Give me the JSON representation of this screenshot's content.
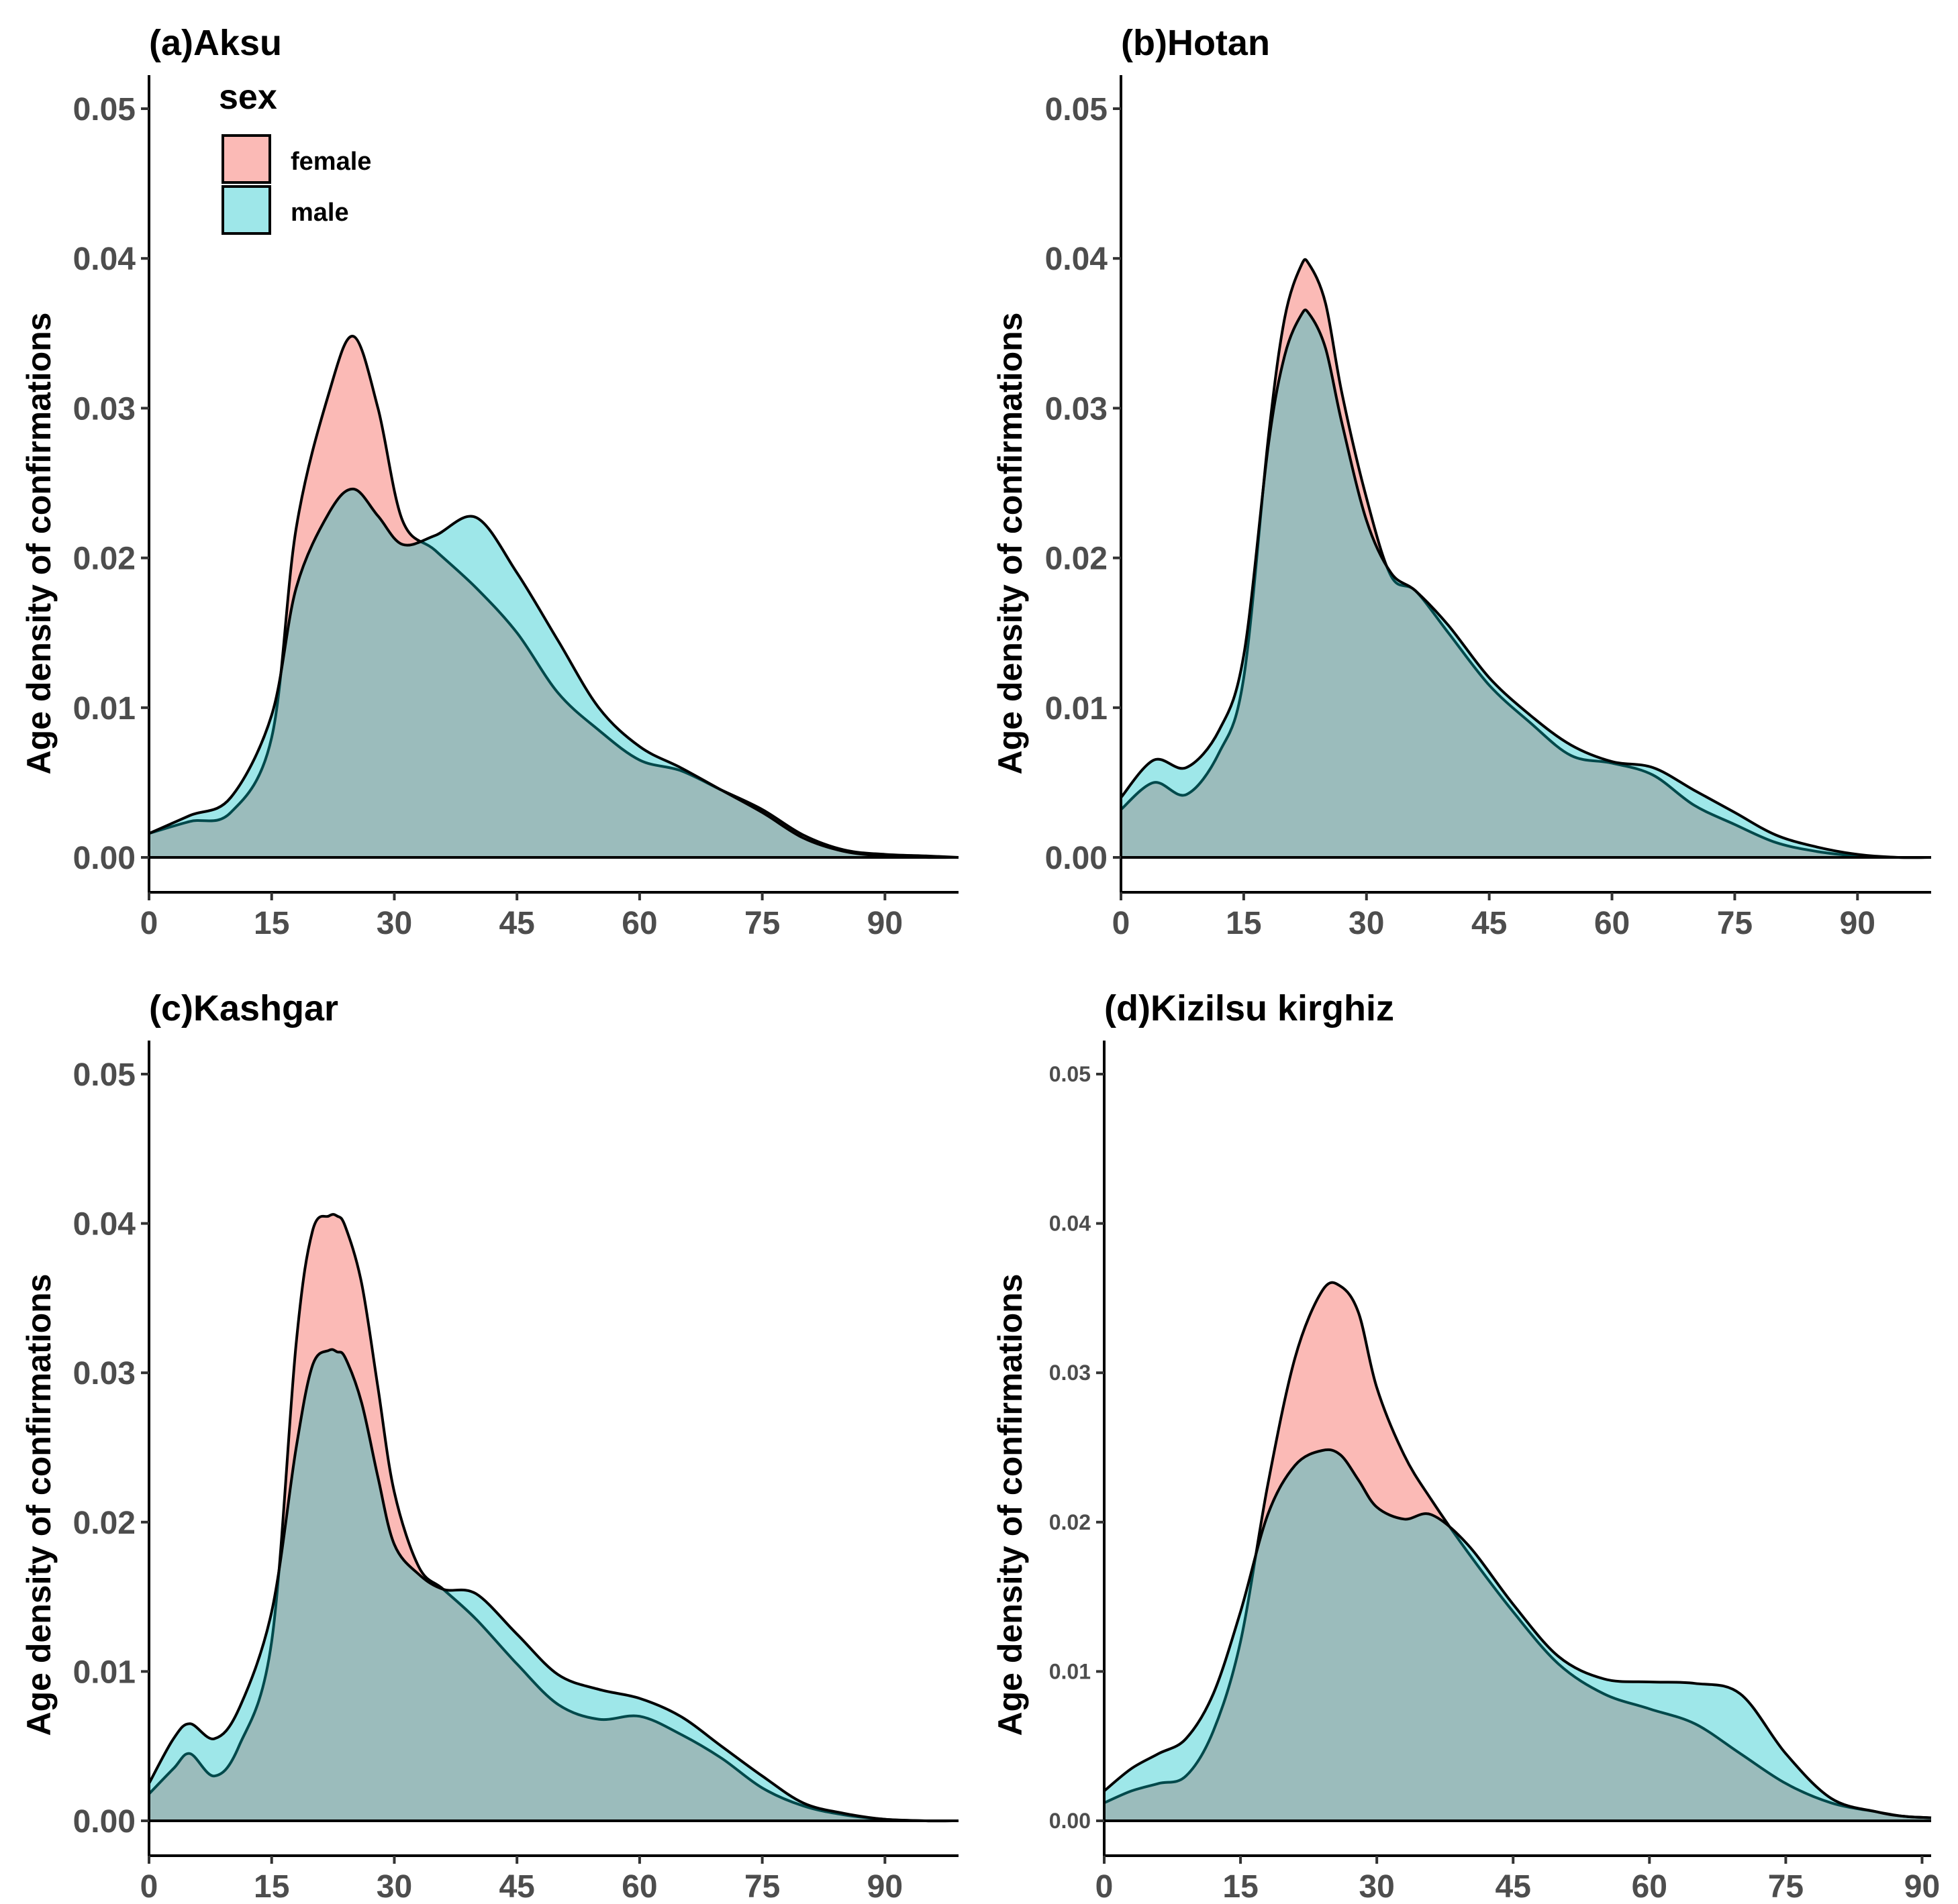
{
  "chart_data": [
    {
      "type": "area",
      "title": "(a)Aksu",
      "xlabel": "",
      "ylabel": "Age density of confirmations",
      "xlim": [
        0,
        99
      ],
      "ylim": [
        0,
        0.05
      ],
      "xticks": [
        "0",
        "15",
        "30",
        "45",
        "60",
        "75",
        "90"
      ],
      "yticks": [
        "0.00",
        "0.01",
        "0.02",
        "0.03",
        "0.04",
        "0.05"
      ],
      "series": [
        {
          "name": "female",
          "x": [
            0,
            5,
            10,
            15,
            18,
            22,
            25,
            28,
            31,
            35,
            40,
            45,
            50,
            55,
            60,
            65,
            70,
            75,
            80,
            85,
            90,
            95,
            99
          ],
          "y": [
            0.0016,
            0.0024,
            0.003,
            0.008,
            0.022,
            0.031,
            0.0348,
            0.03,
            0.0225,
            0.0205,
            0.018,
            0.015,
            0.011,
            0.0085,
            0.0065,
            0.0058,
            0.0045,
            0.0032,
            0.0015,
            0.0005,
            0.0002,
            0.0001,
            0.0
          ]
        },
        {
          "name": "male",
          "x": [
            0,
            5,
            10,
            15,
            18,
            22,
            25,
            28,
            31,
            35,
            40,
            45,
            50,
            55,
            60,
            65,
            70,
            75,
            80,
            85,
            90,
            95,
            99
          ],
          "y": [
            0.0016,
            0.0028,
            0.004,
            0.0095,
            0.018,
            0.023,
            0.0246,
            0.0228,
            0.0209,
            0.0215,
            0.0227,
            0.019,
            0.0145,
            0.01,
            0.0074,
            0.006,
            0.0045,
            0.003,
            0.0013,
            0.0004,
            0.0001,
            0.0,
            0.0
          ]
        }
      ]
    },
    {
      "type": "area",
      "title": "(b)Hotan",
      "xlabel": "",
      "ylabel": "Age density of confirmations",
      "xlim": [
        0,
        99
      ],
      "ylim": [
        0,
        0.05
      ],
      "xticks": [
        "0",
        "15",
        "30",
        "45",
        "60",
        "75",
        "90"
      ],
      "yticks": [
        "0.00",
        "0.01",
        "0.02",
        "0.03",
        "0.04",
        "0.05"
      ],
      "series": [
        {
          "name": "female",
          "x": [
            0,
            4,
            8,
            12,
            15,
            18,
            20,
            22,
            23,
            25,
            27,
            30,
            33,
            36,
            40,
            45,
            50,
            55,
            60,
            65,
            70,
            75,
            80,
            85,
            90,
            95,
            99
          ],
          "y": [
            0.0032,
            0.005,
            0.0042,
            0.007,
            0.012,
            0.028,
            0.036,
            0.0395,
            0.0396,
            0.037,
            0.031,
            0.024,
            0.0188,
            0.0178,
            0.015,
            0.0115,
            0.009,
            0.0068,
            0.0063,
            0.0055,
            0.0035,
            0.0022,
            0.001,
            0.0004,
            0.0001,
            0.0,
            0.0
          ]
        },
        {
          "name": "male",
          "x": [
            0,
            4,
            8,
            12,
            15,
            18,
            20,
            22,
            23,
            25,
            27,
            30,
            33,
            36,
            40,
            45,
            50,
            55,
            60,
            65,
            70,
            75,
            80,
            85,
            90,
            95,
            99
          ],
          "y": [
            0.004,
            0.0065,
            0.006,
            0.0085,
            0.0135,
            0.0275,
            0.0335,
            0.0362,
            0.0363,
            0.034,
            0.029,
            0.0225,
            0.019,
            0.0178,
            0.0155,
            0.012,
            0.0095,
            0.0075,
            0.0064,
            0.006,
            0.0045,
            0.003,
            0.0015,
            0.0007,
            0.0002,
            0.0,
            0.0
          ]
        }
      ]
    },
    {
      "type": "area",
      "title": "(c)Kashgar",
      "xlabel": "",
      "ylabel": "Age density of confirmations",
      "xlim": [
        0,
        99
      ],
      "ylim": [
        0,
        0.05
      ],
      "xticks": [
        "0",
        "15",
        "30",
        "45",
        "60",
        "75",
        "90"
      ],
      "yticks": [
        "0.00",
        "0.01",
        "0.02",
        "0.03",
        "0.04",
        "0.05"
      ],
      "series": [
        {
          "name": "female",
          "x": [
            0,
            3,
            5,
            8,
            11,
            15,
            18,
            20,
            22,
            23,
            24,
            26,
            28,
            30,
            33,
            36,
            40,
            45,
            50,
            55,
            60,
            65,
            70,
            75,
            80,
            85,
            90,
            95,
            99
          ],
          "y": [
            0.0018,
            0.0035,
            0.0045,
            0.003,
            0.005,
            0.012,
            0.032,
            0.0395,
            0.0405,
            0.0405,
            0.0398,
            0.036,
            0.029,
            0.022,
            0.017,
            0.0155,
            0.0135,
            0.0105,
            0.0078,
            0.0068,
            0.007,
            0.0058,
            0.0042,
            0.0022,
            0.001,
            0.0004,
            0.0001,
            0.0,
            0.0
          ]
        },
        {
          "name": "male",
          "x": [
            0,
            3,
            5,
            8,
            11,
            15,
            18,
            20,
            22,
            23,
            24,
            26,
            28,
            30,
            33,
            36,
            40,
            45,
            50,
            55,
            60,
            65,
            70,
            75,
            80,
            85,
            90,
            95,
            99
          ],
          "y": [
            0.0025,
            0.0055,
            0.0065,
            0.0055,
            0.0075,
            0.014,
            0.025,
            0.0305,
            0.0315,
            0.0314,
            0.031,
            0.028,
            0.023,
            0.0185,
            0.0165,
            0.0155,
            0.0152,
            0.0125,
            0.0098,
            0.0088,
            0.0082,
            0.007,
            0.005,
            0.003,
            0.0012,
            0.0005,
            0.0001,
            0.0,
            0.0
          ]
        }
      ]
    },
    {
      "type": "area",
      "title": "(d)Kizilsu kirghiz",
      "xlabel": "",
      "ylabel": "Age density of confirmations",
      "xlim": [
        0,
        91
      ],
      "ylim": [
        0,
        0.05
      ],
      "xticks": [
        "0",
        "15",
        "30",
        "45",
        "60",
        "75",
        "90"
      ],
      "yticks": [
        "0.00",
        "0.01",
        "0.02",
        "0.03",
        "0.04",
        "0.05"
      ],
      "series": [
        {
          "name": "female",
          "x": [
            0,
            3,
            6,
            9,
            12,
            15,
            18,
            21,
            24,
            26,
            28,
            30,
            33,
            36,
            40,
            45,
            50,
            55,
            60,
            65,
            70,
            75,
            80,
            85,
            88,
            91
          ],
          "y": [
            0.0012,
            0.002,
            0.0025,
            0.003,
            0.006,
            0.012,
            0.0225,
            0.031,
            0.0355,
            0.0358,
            0.034,
            0.029,
            0.0245,
            0.0215,
            0.018,
            0.014,
            0.0105,
            0.0085,
            0.0075,
            0.0065,
            0.0045,
            0.0025,
            0.0012,
            0.0006,
            0.0003,
            0.0002
          ]
        },
        {
          "name": "male",
          "x": [
            0,
            3,
            6,
            9,
            12,
            15,
            18,
            21,
            24,
            26,
            28,
            30,
            33,
            36,
            40,
            45,
            50,
            55,
            60,
            65,
            70,
            75,
            80,
            85,
            88,
            91
          ],
          "y": [
            0.002,
            0.0035,
            0.0045,
            0.0055,
            0.0085,
            0.014,
            0.0205,
            0.0238,
            0.0248,
            0.0245,
            0.0228,
            0.021,
            0.0202,
            0.0205,
            0.0185,
            0.0145,
            0.011,
            0.0095,
            0.0093,
            0.0092,
            0.0085,
            0.0045,
            0.0015,
            0.0006,
            0.0003,
            0.0002
          ]
        }
      ]
    }
  ],
  "legend": {
    "title": "sex",
    "items": [
      {
        "label": "female",
        "color": "#F8766D"
      },
      {
        "label": "male",
        "color": "#00BFC4"
      }
    ]
  },
  "colors": {
    "female": "#F8766D",
    "male": "#00BFC4",
    "axis": "#000000",
    "tick_text": "#4d4d4d"
  }
}
